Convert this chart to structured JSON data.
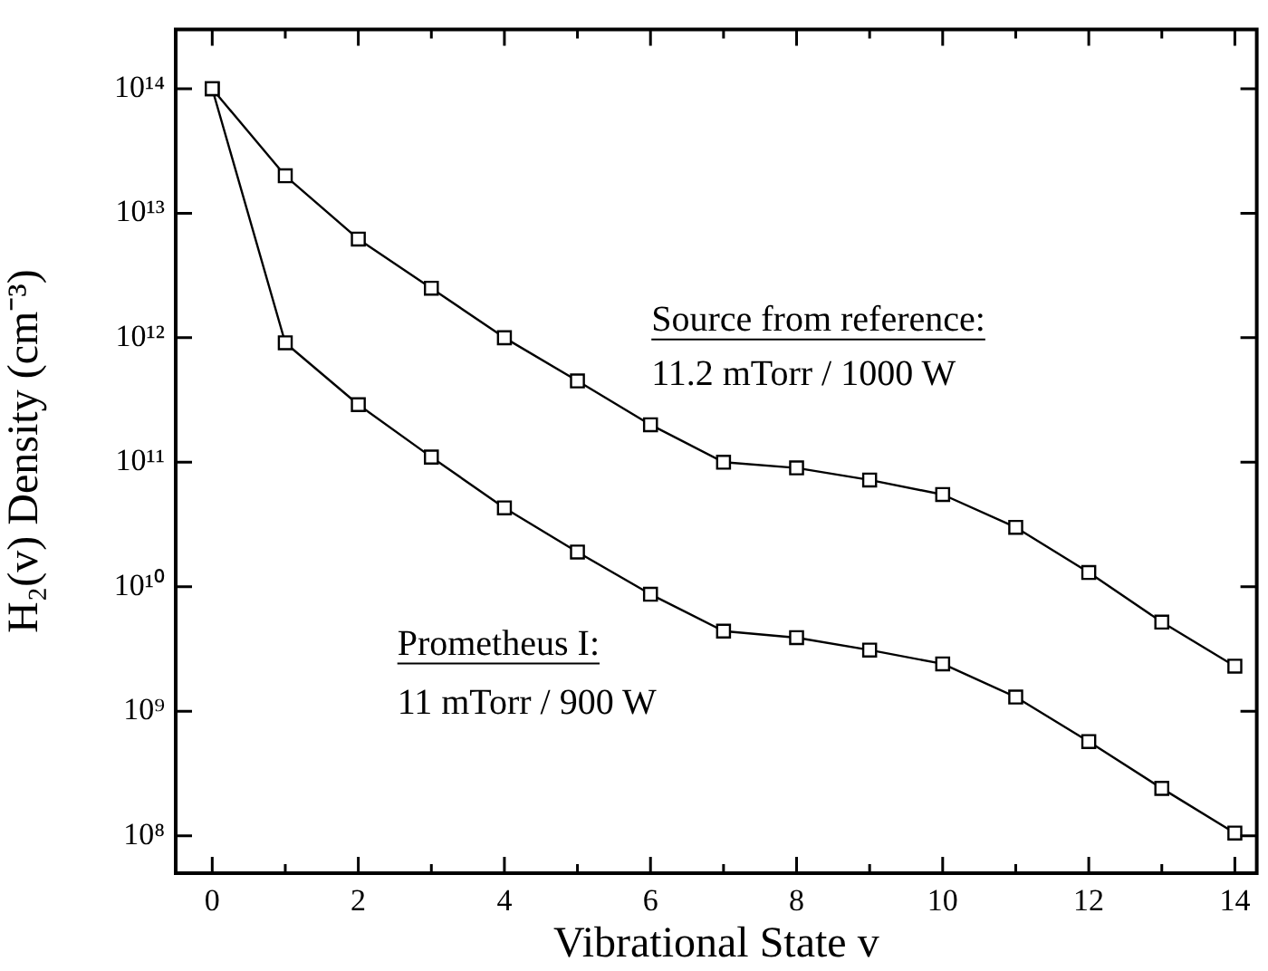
{
  "chart_data": {
    "type": "line",
    "xlabel": "Vibrational State v",
    "ylabel": "H₂(v) Density (cm⁻³)",
    "x": [
      0,
      1,
      2,
      3,
      4,
      5,
      6,
      7,
      8,
      9,
      10,
      11,
      12,
      13,
      14
    ],
    "series": [
      {
        "color": "#000000",
        "values": [
          100000000000000.0,
          20000000000000.0,
          6200000000000.0,
          2500000000000.0,
          1000000000000.0,
          450000000000.0,
          200000000000.0,
          100000000000.0,
          90000000000.0,
          72000000000.0,
          55000000000.0,
          30000000000.0,
          13000000000.0,
          5200000000.0,
          2300000000.0
        ]
      },
      {
        "color": "#000000",
        "values": [
          100000000000000.0,
          910000000000.0,
          290000000000.0,
          110000000000.0,
          43000000000.0,
          19000000000.0,
          8700000000.0,
          4400000000.0,
          3900000000.0,
          3100000000.0,
          2400000000.0,
          1300000000.0,
          570000000.0,
          240000000.0,
          105000000.0
        ]
      }
    ],
    "log": "y",
    "grid": false,
    "legend": false,
    "marker": "square",
    "line_style": "solid",
    "xlim": [
      -0.5,
      14.3
    ],
    "xticks": [
      0,
      {
        "value": 1,
        "label": null
      },
      2,
      {
        "value": 3,
        "label": null
      },
      4,
      {
        "value": 5,
        "label": null
      },
      6,
      {
        "value": 7,
        "label": null
      },
      8,
      {
        "value": 9,
        "label": null
      },
      10,
      {
        "value": 11,
        "label": null
      },
      12,
      {
        "value": 13,
        "label": null
      },
      14
    ],
    "ylim": [
      50000000.0,
      300000000000000.0
    ],
    "yticks": [
      {
        "value": 100000000.0,
        "label": "10⁸"
      },
      {
        "value": 1000000000.0,
        "label": "10⁹"
      },
      {
        "value": 10000000000.0,
        "label": "10¹⁰"
      },
      {
        "value": 100000000000.0,
        "label": "10¹¹"
      },
      {
        "value": 1000000000000.0,
        "label": "10¹²"
      },
      {
        "value": 10000000000000.0,
        "label": "10¹³"
      },
      {
        "value": 100000000000000.0,
        "label": "10¹⁴"
      }
    ],
    "annotations": [
      "Source from reference:",
      "11.2 mTorr / 1000 W",
      "Prometheus I:",
      "11 mTorr / 900 W"
    ]
  }
}
